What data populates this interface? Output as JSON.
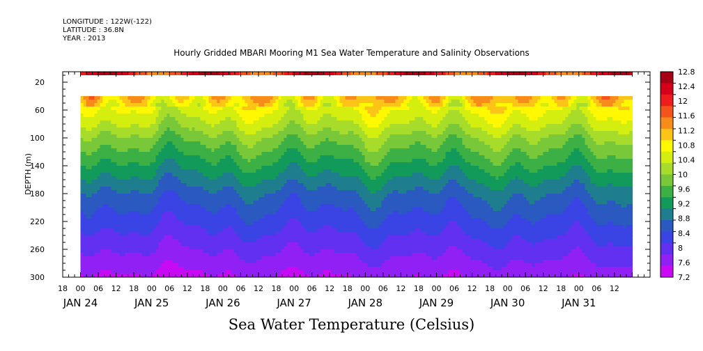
{
  "header": {
    "longitude": "LONGITUDE : 122W(-122)",
    "latitude": "LATITUDE : 36.8N",
    "year": "YEAR : 2013"
  },
  "chart_data": {
    "type": "heatmap",
    "title": "Hourly Gridded MBARI Mooring M1 Sea Water Temperature and Salinity Observations",
    "xlabel": "Sea Water Temperature (Celsius)",
    "ylabel": "DEPTH (m)",
    "ylim": [
      300,
      5
    ],
    "y_ticks": [
      20,
      60,
      100,
      140,
      180,
      220,
      260,
      300
    ],
    "x_hour_ticks": [
      "18",
      "00",
      "06",
      "12",
      "18",
      "00",
      "06",
      "12",
      "18",
      "00",
      "06",
      "12",
      "18",
      "00",
      "06",
      "12",
      "18",
      "00",
      "06",
      "12",
      "18",
      "00",
      "06",
      "12",
      "18",
      "00",
      "06",
      "12",
      "18",
      "00",
      "06",
      "12"
    ],
    "x_day_labels": [
      "JAN 24",
      "JAN 25",
      "JAN 26",
      "JAN 27",
      "JAN 28",
      "JAN 29",
      "JAN 30",
      "JAN 31"
    ],
    "x_start_hour_offset": -6,
    "colorbar": {
      "levels": [
        12.8,
        12.4,
        12,
        11.6,
        11.2,
        10.8,
        10.4,
        10,
        9.6,
        9.2,
        8.8,
        8.4,
        8,
        7.6,
        7.2
      ],
      "colors": [
        "#a50015",
        "#d4001a",
        "#ee1c1c",
        "#f4541c",
        "#f88c1a",
        "#fcc416",
        "#fff800",
        "#d4ee10",
        "#a8dc2a",
        "#78c83a",
        "#3cb044",
        "#129a5a",
        "#1e7e8e",
        "#2a5ac0",
        "#3a44e4",
        "#6230f0",
        "#9020f4",
        "#c80af4"
      ],
      "min": 7.2,
      "max": 12.8
    },
    "data_extent": {
      "start_hour": 0,
      "end_hour": 186
    },
    "missing_band": {
      "depth_top": 10,
      "depth_bottom": 40
    },
    "surface_value_range": [
      11.4,
      12.6
    ],
    "depth_profile": [
      {
        "depth": 40,
        "temp": 11.0
      },
      {
        "depth": 60,
        "temp": 10.5
      },
      {
        "depth": 80,
        "temp": 10.2
      },
      {
        "depth": 100,
        "temp": 9.8
      },
      {
        "depth": 120,
        "temp": 9.5
      },
      {
        "depth": 140,
        "temp": 9.2
      },
      {
        "depth": 160,
        "temp": 8.9
      },
      {
        "depth": 180,
        "temp": 8.6
      },
      {
        "depth": 200,
        "temp": 8.4
      },
      {
        "depth": 220,
        "temp": 8.2
      },
      {
        "depth": 240,
        "temp": 8.0
      },
      {
        "depth": 260,
        "temp": 7.8
      },
      {
        "depth": 280,
        "temp": 7.6
      },
      {
        "depth": 300,
        "temp": 7.4
      }
    ],
    "grid": false,
    "legend_position": "right"
  }
}
